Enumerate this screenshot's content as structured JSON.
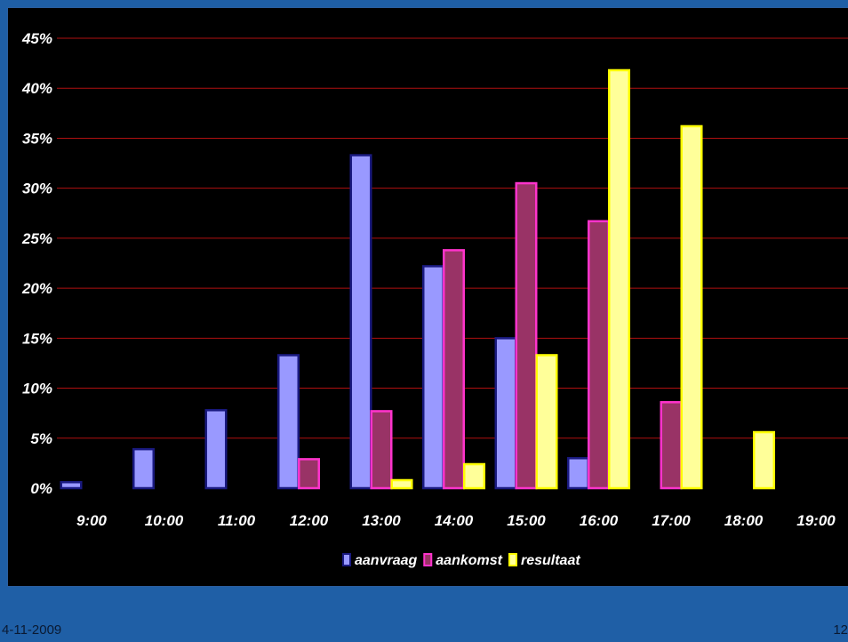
{
  "colors": {
    "background": "#000000",
    "gridline": "#b01010",
    "slide": "#1f5fa6",
    "aanvraag": "#9999ff",
    "aanvraag_edge": "#1a1a80",
    "aankomst": "#993366",
    "aankomst_edge": "#ff33cc",
    "resultaat": "#ffff99",
    "resultaat_edge": "#ffff00"
  },
  "footer": {
    "date": "4-11-2009",
    "page": "12"
  },
  "chart_data": {
    "type": "bar",
    "title": "",
    "xlabel": "",
    "ylabel": "",
    "categories": [
      "9:00",
      "10:00",
      "11:00",
      "12:00",
      "13:00",
      "14:00",
      "15:00",
      "16:00",
      "17:00",
      "18:00",
      "19:00"
    ],
    "y_ticks": [
      "0%",
      "5%",
      "10%",
      "15%",
      "20%",
      "25%",
      "30%",
      "35%",
      "40%",
      "45%"
    ],
    "ylim": [
      0,
      45
    ],
    "grid": true,
    "legend_position": "bottom",
    "series": [
      {
        "name": "aanvraag",
        "values": [
          0.6,
          3.9,
          7.8,
          13.3,
          33.3,
          22.2,
          15.0,
          3.0,
          0,
          0,
          0
        ]
      },
      {
        "name": "aankomst",
        "values": [
          0,
          0,
          0,
          2.9,
          7.7,
          23.8,
          30.5,
          26.7,
          8.6,
          0,
          0
        ]
      },
      {
        "name": "resultaat",
        "values": [
          0,
          0,
          0,
          0,
          0.8,
          2.4,
          13.3,
          41.8,
          36.2,
          5.6,
          0
        ]
      }
    ]
  }
}
